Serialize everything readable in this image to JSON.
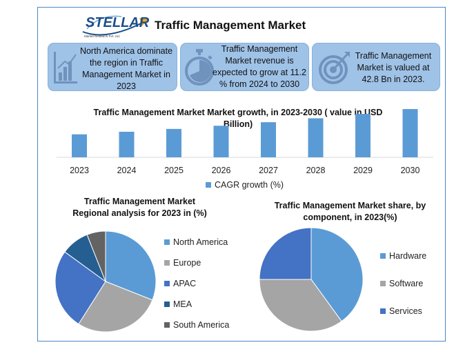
{
  "header": {
    "logo_text": "STELLAR",
    "logo_subtext": "Market Research Pvt. Ltd.",
    "title": "Traffic Management Market"
  },
  "cards": [
    {
      "icon": "bar-growth-icon",
      "text": "North America dominate the region in Traffic Management Market in 2023"
    },
    {
      "icon": "stopwatch-icon",
      "text": "Traffic Management Market revenue is expected to grow at 11.2 % from 2024 to 2030"
    },
    {
      "icon": "target-icon",
      "text": "Traffic Management Market is valued at 42.8 Bn in 2023."
    }
  ],
  "colors": {
    "primary_blue": "#5b9bd5",
    "gray": "#a5a5a5",
    "royal_blue": "#4472c4",
    "dark_blue": "#255e91",
    "dark_gray": "#636363",
    "card_bg": "#9fc2e7"
  },
  "chart_data": [
    {
      "type": "bar",
      "title": "Traffic Management Market Market growth, in 2023-2030 ( value in USD Billion)",
      "categories": [
        "2023",
        "2024",
        "2025",
        "2026",
        "2027",
        "2028",
        "2029",
        "2030"
      ],
      "series": [
        {
          "name": "CAGR growth (%)",
          "values": [
            42.8,
            47.6,
            52.9,
            58.8,
            65.4,
            72.7,
            80.9,
            89.9
          ]
        }
      ],
      "ylim": [
        0,
        90
      ],
      "legend": "bottom",
      "grid": false
    },
    {
      "type": "pie",
      "title": "Traffic Management Market Regional analysis for 2023 in (%)",
      "labels": [
        "North America",
        "Europe",
        "APAC",
        "MEA",
        "South America"
      ],
      "values": [
        31,
        28,
        26,
        9,
        6
      ],
      "legend": "right"
    },
    {
      "type": "pie",
      "title": "Traffic Management Market share, by component, in 2023(%)",
      "labels": [
        "Hardware",
        "Software",
        "Services"
      ],
      "values": [
        40,
        35,
        25
      ],
      "legend": "right"
    }
  ]
}
